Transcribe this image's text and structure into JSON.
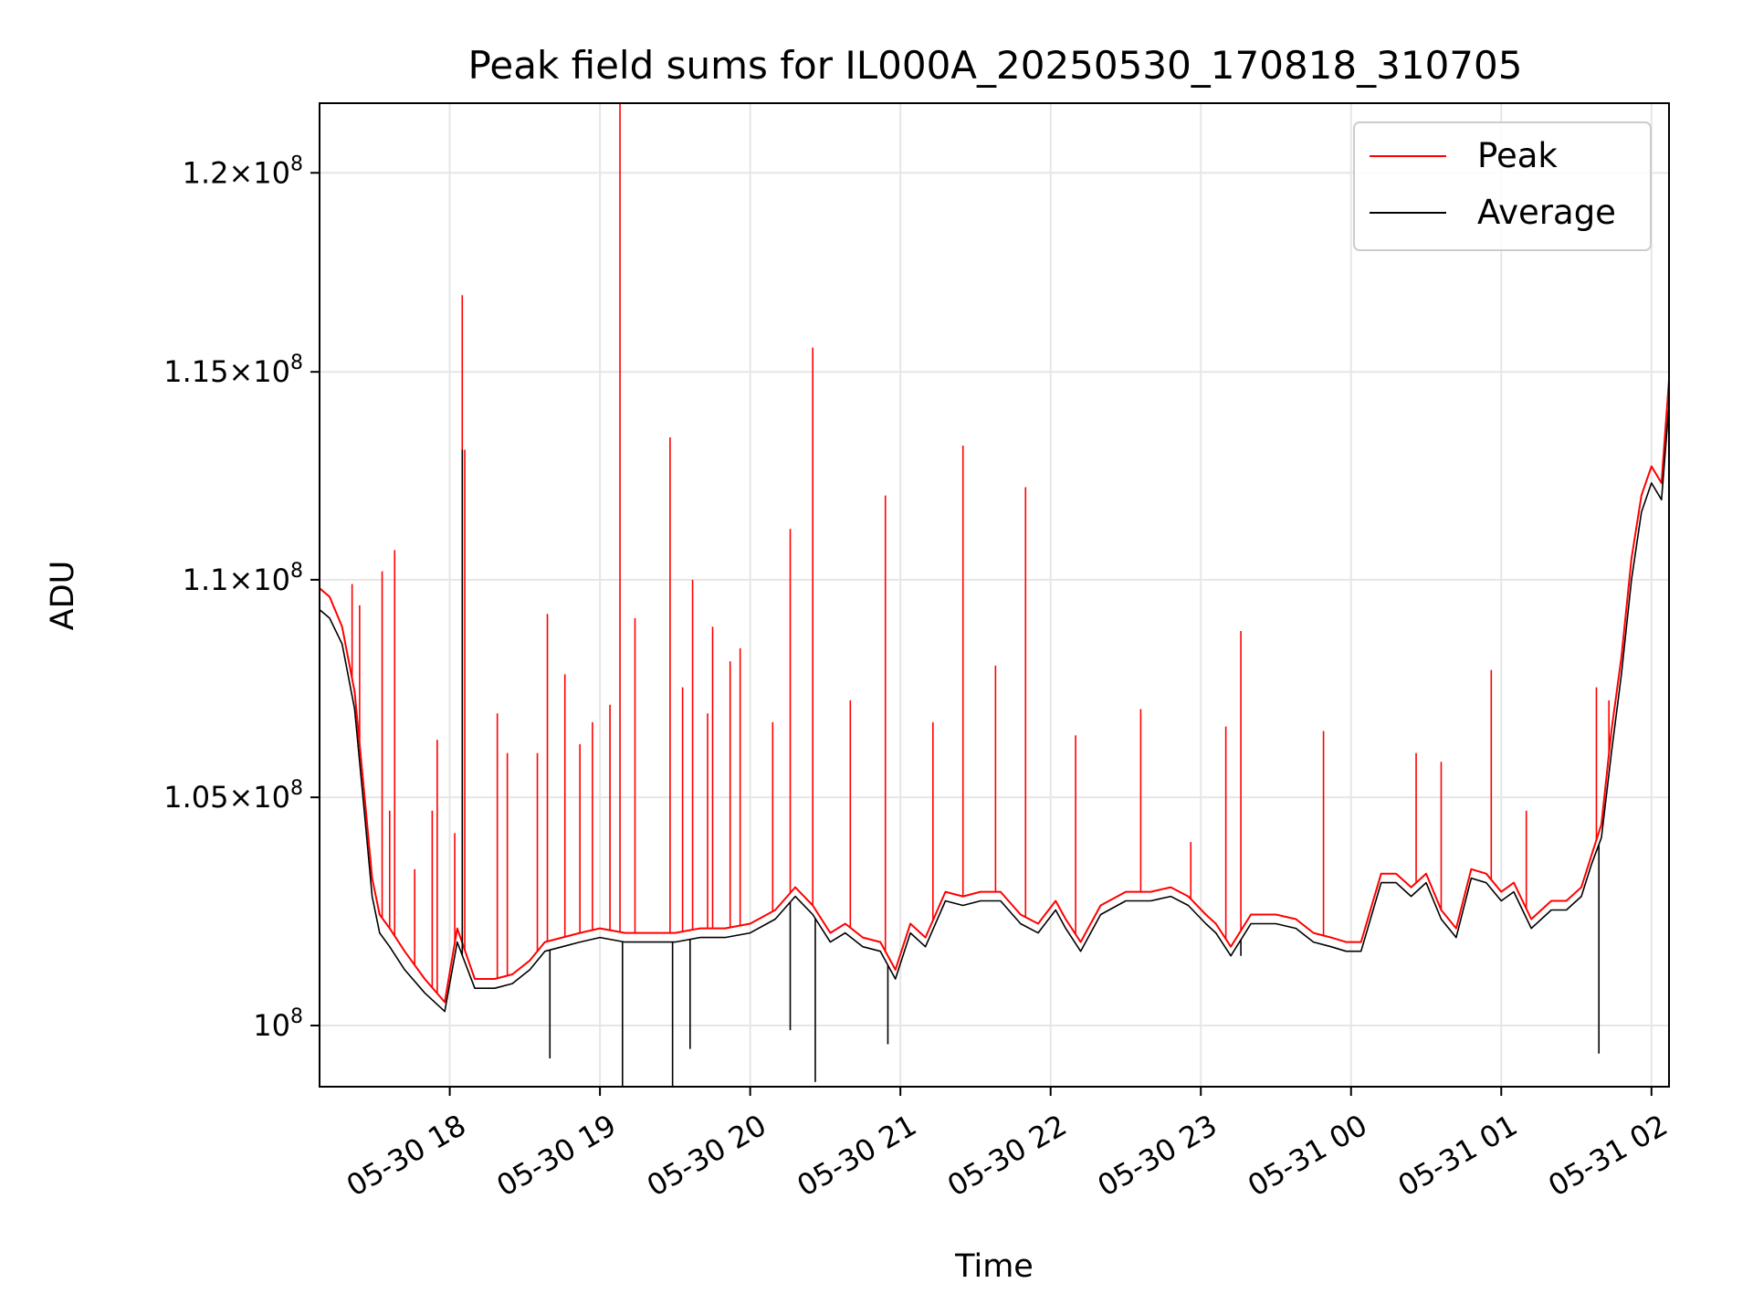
{
  "chart_data": {
    "type": "line",
    "title": "Peak field sums for IL000A_20250530_170818_310705",
    "xlabel": "Time",
    "ylabel": "ADU",
    "y_scale": "log",
    "grid": true,
    "legend_position": "top-right",
    "xlim": [
      "2025-05-30 17:08",
      "2025-05-31 02:07"
    ],
    "ylim": [
      98700000,
      121800000
    ],
    "x_ticks": [
      {
        "t": "2025-05-30 18:00",
        "label": "05-30 18"
      },
      {
        "t": "2025-05-30 19:00",
        "label": "05-30 19"
      },
      {
        "t": "2025-05-30 20:00",
        "label": "05-30 20"
      },
      {
        "t": "2025-05-30 21:00",
        "label": "05-30 21"
      },
      {
        "t": "2025-05-30 22:00",
        "label": "05-30 22"
      },
      {
        "t": "2025-05-30 23:00",
        "label": "05-30 23"
      },
      {
        "t": "2025-05-31 00:00",
        "label": "05-31 00"
      },
      {
        "t": "2025-05-31 01:00",
        "label": "05-31 01"
      },
      {
        "t": "2025-05-31 02:00",
        "label": "05-31 02"
      }
    ],
    "y_ticks": [
      {
        "v": 100000000,
        "mant": "",
        "exp": "8"
      },
      {
        "v": 105000000,
        "mant": "1.05",
        "exp": "8"
      },
      {
        "v": 110000000,
        "mant": "1.1",
        "exp": "8"
      },
      {
        "v": 115000000,
        "mant": "1.15",
        "exp": "8"
      },
      {
        "v": 120000000,
        "mant": "1.2",
        "exp": "8"
      }
    ],
    "series": [
      {
        "name": "Peak",
        "color": "#ff0000",
        "x": [
          "2025-05-30 17:08",
          "2025-05-30 17:12",
          "2025-05-30 17:17",
          "2025-05-30 17:22",
          "2025-05-30 17:26",
          "2025-05-30 17:29",
          "2025-05-30 17:32",
          "2025-05-30 17:36",
          "2025-05-30 17:42",
          "2025-05-30 17:50",
          "2025-05-30 17:58",
          "2025-05-30 18:03",
          "2025-05-30 18:10",
          "2025-05-30 18:18",
          "2025-05-30 18:25",
          "2025-05-30 18:32",
          "2025-05-30 18:38",
          "2025-05-30 18:45",
          "2025-05-30 18:52",
          "2025-05-30 19:00",
          "2025-05-30 19:10",
          "2025-05-30 19:20",
          "2025-05-30 19:30",
          "2025-05-30 19:40",
          "2025-05-30 19:50",
          "2025-05-30 20:00",
          "2025-05-30 20:10",
          "2025-05-30 20:18",
          "2025-05-30 20:25",
          "2025-05-30 20:32",
          "2025-05-30 20:38",
          "2025-05-30 20:45",
          "2025-05-30 20:52",
          "2025-05-30 20:58",
          "2025-05-30 21:04",
          "2025-05-30 21:10",
          "2025-05-30 21:18",
          "2025-05-30 21:25",
          "2025-05-30 21:32",
          "2025-05-30 21:40",
          "2025-05-30 21:48",
          "2025-05-30 21:55",
          "2025-05-30 22:02",
          "2025-05-30 22:06",
          "2025-05-30 22:12",
          "2025-05-30 22:20",
          "2025-05-30 22:30",
          "2025-05-30 22:40",
          "2025-05-30 22:48",
          "2025-05-30 22:55",
          "2025-05-30 23:02",
          "2025-05-30 23:06",
          "2025-05-30 23:12",
          "2025-05-30 23:20",
          "2025-05-30 23:30",
          "2025-05-30 23:38",
          "2025-05-30 23:45",
          "2025-05-30 23:52",
          "2025-05-30 23:58",
          "2025-05-31 00:04",
          "2025-05-31 00:12",
          "2025-05-31 00:18",
          "2025-05-31 00:24",
          "2025-05-31 00:30",
          "2025-05-31 00:36",
          "2025-05-31 00:42",
          "2025-05-31 00:48",
          "2025-05-31 00:54",
          "2025-05-31 01:00",
          "2025-05-31 01:05",
          "2025-05-31 01:12",
          "2025-05-31 01:20",
          "2025-05-31 01:26",
          "2025-05-31 01:32",
          "2025-05-31 01:36",
          "2025-05-31 01:40",
          "2025-05-31 01:44",
          "2025-05-31 01:48",
          "2025-05-31 01:52",
          "2025-05-31 01:56",
          "2025-05-31 02:00",
          "2025-05-31 02:04",
          "2025-05-31 02:07"
        ],
        "values": [
          109800000,
          109600000,
          108900000,
          107400000,
          105000000,
          103200000,
          102400000,
          102100000,
          101600000,
          101000000,
          100500000,
          102100000,
          101000000,
          101000000,
          101100000,
          101400000,
          101800000,
          101900000,
          102000000,
          102100000,
          102000000,
          102000000,
          102000000,
          102100000,
          102100000,
          102200000,
          102500000,
          103000000,
          102600000,
          102000000,
          102200000,
          101900000,
          101800000,
          101200000,
          102200000,
          101900000,
          102900000,
          102800000,
          102900000,
          102900000,
          102400000,
          102200000,
          102700000,
          102300000,
          101800000,
          102600000,
          102900000,
          102900000,
          103000000,
          102800000,
          102400000,
          102200000,
          101700000,
          102400000,
          102400000,
          102300000,
          102000000,
          101900000,
          101800000,
          101800000,
          103300000,
          103300000,
          103000000,
          103300000,
          102500000,
          102100000,
          103400000,
          103300000,
          102900000,
          103100000,
          102300000,
          102700000,
          102700000,
          103000000,
          103700000,
          104400000,
          106500000,
          108200000,
          110500000,
          112000000,
          112700000,
          112300000,
          114800000
        ]
      },
      {
        "name": "Average",
        "color": "#000000",
        "x": [
          "2025-05-30 17:08",
          "2025-05-30 17:12",
          "2025-05-30 17:17",
          "2025-05-30 17:22",
          "2025-05-30 17:26",
          "2025-05-30 17:29",
          "2025-05-30 17:32",
          "2025-05-30 17:36",
          "2025-05-30 17:42",
          "2025-05-30 17:50",
          "2025-05-30 17:58",
          "2025-05-30 18:03",
          "2025-05-30 18:10",
          "2025-05-30 18:18",
          "2025-05-30 18:25",
          "2025-05-30 18:32",
          "2025-05-30 18:38",
          "2025-05-30 18:45",
          "2025-05-30 18:52",
          "2025-05-30 19:00",
          "2025-05-30 19:10",
          "2025-05-30 19:20",
          "2025-05-30 19:30",
          "2025-05-30 19:40",
          "2025-05-30 19:50",
          "2025-05-30 20:00",
          "2025-05-30 20:10",
          "2025-05-30 20:18",
          "2025-05-30 20:25",
          "2025-05-30 20:32",
          "2025-05-30 20:38",
          "2025-05-30 20:45",
          "2025-05-30 20:52",
          "2025-05-30 20:58",
          "2025-05-30 21:04",
          "2025-05-30 21:10",
          "2025-05-30 21:18",
          "2025-05-30 21:25",
          "2025-05-30 21:32",
          "2025-05-30 21:40",
          "2025-05-30 21:48",
          "2025-05-30 21:55",
          "2025-05-30 22:02",
          "2025-05-30 22:06",
          "2025-05-30 22:12",
          "2025-05-30 22:20",
          "2025-05-30 22:30",
          "2025-05-30 22:40",
          "2025-05-30 22:48",
          "2025-05-30 22:55",
          "2025-05-30 23:02",
          "2025-05-30 23:06",
          "2025-05-30 23:12",
          "2025-05-30 23:20",
          "2025-05-30 23:30",
          "2025-05-30 23:38",
          "2025-05-30 23:45",
          "2025-05-30 23:52",
          "2025-05-30 23:58",
          "2025-05-31 00:04",
          "2025-05-31 00:12",
          "2025-05-31 00:18",
          "2025-05-31 00:24",
          "2025-05-31 00:30",
          "2025-05-31 00:36",
          "2025-05-31 00:42",
          "2025-05-31 00:48",
          "2025-05-31 00:54",
          "2025-05-31 01:00",
          "2025-05-31 01:05",
          "2025-05-31 01:12",
          "2025-05-31 01:20",
          "2025-05-31 01:26",
          "2025-05-31 01:32",
          "2025-05-31 01:36",
          "2025-05-31 01:40",
          "2025-05-31 01:44",
          "2025-05-31 01:48",
          "2025-05-31 01:52",
          "2025-05-31 01:56",
          "2025-05-31 02:00",
          "2025-05-31 02:04",
          "2025-05-31 02:07"
        ],
        "values": [
          109300000,
          109100000,
          108500000,
          107000000,
          104600000,
          102800000,
          102000000,
          101700000,
          101200000,
          100700000,
          100300000,
          101800000,
          100800000,
          100800000,
          100900000,
          101200000,
          101600000,
          101700000,
          101800000,
          101900000,
          101800000,
          101800000,
          101800000,
          101900000,
          101900000,
          102000000,
          102300000,
          102800000,
          102400000,
          101800000,
          102000000,
          101700000,
          101600000,
          101000000,
          102000000,
          101700000,
          102700000,
          102600000,
          102700000,
          102700000,
          102200000,
          102000000,
          102500000,
          102100000,
          101600000,
          102400000,
          102700000,
          102700000,
          102800000,
          102600000,
          102200000,
          102000000,
          101500000,
          102200000,
          102200000,
          102100000,
          101800000,
          101700000,
          101600000,
          101600000,
          103100000,
          103100000,
          102800000,
          103100000,
          102300000,
          101900000,
          103200000,
          103100000,
          102700000,
          102900000,
          102100000,
          102500000,
          102500000,
          102800000,
          103500000,
          104100000,
          106000000,
          107800000,
          110000000,
          111600000,
          112300000,
          111900000,
          114200000
        ]
      }
    ],
    "spikes": {
      "Peak": [
        [
          "2025-05-30 17:21",
          109900000
        ],
        [
          "2025-05-30 17:24",
          109400000
        ],
        [
          "2025-05-30 17:33",
          110200000
        ],
        [
          "2025-05-30 17:36",
          104700000
        ],
        [
          "2025-05-30 17:38",
          110700000
        ],
        [
          "2025-05-30 17:46",
          103400000
        ],
        [
          "2025-05-30 17:53",
          104700000
        ],
        [
          "2025-05-30 17:55",
          106300000
        ],
        [
          "2025-05-30 18:02",
          104200000
        ],
        [
          "2025-05-30 18:05",
          116900000
        ],
        [
          "2025-05-30 18:06",
          113100000
        ],
        [
          "2025-05-30 18:19",
          106900000
        ],
        [
          "2025-05-30 18:23",
          106000000
        ],
        [
          "2025-05-30 18:35",
          106000000
        ],
        [
          "2025-05-30 18:39",
          109200000
        ],
        [
          "2025-05-30 18:46",
          107800000
        ],
        [
          "2025-05-30 18:52",
          106200000
        ],
        [
          "2025-05-30 18:57",
          106700000
        ],
        [
          "2025-05-30 19:04",
          107100000
        ],
        [
          "2025-05-30 19:08",
          121800000
        ],
        [
          "2025-05-30 19:14",
          109100000
        ],
        [
          "2025-05-30 19:28",
          113400000
        ],
        [
          "2025-05-30 19:33",
          107500000
        ],
        [
          "2025-05-30 19:37",
          110000000
        ],
        [
          "2025-05-30 19:43",
          106900000
        ],
        [
          "2025-05-30 19:45",
          108900000
        ],
        [
          "2025-05-30 19:52",
          108100000
        ],
        [
          "2025-05-30 19:56",
          108400000
        ],
        [
          "2025-05-30 20:09",
          106700000
        ],
        [
          "2025-05-30 20:16",
          111200000
        ],
        [
          "2025-05-30 20:25",
          115600000
        ],
        [
          "2025-05-30 20:40",
          107200000
        ],
        [
          "2025-05-30 20:54",
          112000000
        ],
        [
          "2025-05-30 21:13",
          106700000
        ],
        [
          "2025-05-30 21:25",
          113200000
        ],
        [
          "2025-05-30 21:38",
          108000000
        ],
        [
          "2025-05-30 21:50",
          112200000
        ],
        [
          "2025-05-30 22:10",
          106400000
        ],
        [
          "2025-05-30 22:36",
          107000000
        ],
        [
          "2025-05-30 22:56",
          104000000
        ],
        [
          "2025-05-30 23:10",
          106600000
        ],
        [
          "2025-05-30 23:16",
          108800000
        ],
        [
          "2025-05-30 23:49",
          106500000
        ],
        [
          "2025-05-31 00:26",
          106000000
        ],
        [
          "2025-05-31 00:36",
          105800000
        ],
        [
          "2025-05-31 00:56",
          107900000
        ],
        [
          "2025-05-31 01:10",
          104700000
        ],
        [
          "2025-05-31 01:38",
          107500000
        ],
        [
          "2025-05-31 01:43",
          107200000
        ]
      ],
      "Average": [
        [
          "2025-05-30 18:40",
          99300000
        ],
        [
          "2025-05-30 19:09",
          98700000
        ],
        [
          "2025-05-30 19:29",
          98700000
        ],
        [
          "2025-05-30 19:36",
          99500000
        ],
        [
          "2025-05-30 20:16",
          99900000
        ],
        [
          "2025-05-30 20:26",
          98800000
        ],
        [
          "2025-05-30 20:55",
          99600000
        ],
        [
          "2025-05-30 23:16",
          101500000
        ],
        [
          "2025-05-31 01:39",
          99400000
        ],
        [
          "2025-05-30 18:05",
          113100000
        ]
      ]
    }
  }
}
